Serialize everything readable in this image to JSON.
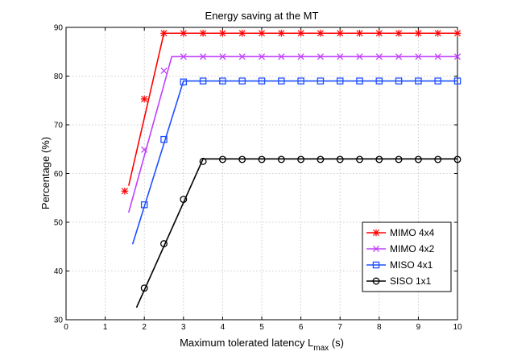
{
  "chart_data": {
    "type": "line",
    "title": "Energy saving at the MT",
    "xlabel": "Maximum tolerated latency L",
    "xlabel_sub": "max",
    "xlabel_unit": " (s)",
    "ylabel": "Percentage (%)",
    "xlim": [
      0,
      10
    ],
    "ylim": [
      30,
      90
    ],
    "xticks": [
      "0",
      "1",
      "2",
      "3",
      "4",
      "5",
      "6",
      "7",
      "8",
      "9",
      "10"
    ],
    "yticks": [
      "30",
      "40",
      "50",
      "60",
      "70",
      "80",
      "90"
    ],
    "grid": true,
    "legend_position": "bottom-right",
    "series": [
      {
        "name": "MIMO 4x4",
        "color": "#ff0000",
        "marker": "asterisk",
        "line": [
          [
            1.6,
            57.5
          ],
          [
            2.5,
            88.8
          ],
          [
            10,
            88.8
          ]
        ],
        "markers": [
          [
            1.5,
            56.4
          ],
          [
            2.0,
            75.3
          ],
          [
            2.5,
            88.8
          ],
          [
            3.0,
            88.8
          ],
          [
            3.5,
            88.8
          ],
          [
            4.0,
            88.8
          ],
          [
            4.5,
            88.8
          ],
          [
            5.0,
            88.8
          ],
          [
            5.5,
            88.8
          ],
          [
            6.0,
            88.8
          ],
          [
            6.5,
            88.8
          ],
          [
            7.0,
            88.8
          ],
          [
            7.5,
            88.8
          ],
          [
            8.0,
            88.8
          ],
          [
            8.5,
            88.8
          ],
          [
            9.0,
            88.8
          ],
          [
            9.5,
            88.8
          ],
          [
            10.0,
            88.8
          ]
        ]
      },
      {
        "name": "MIMO 4x2",
        "color": "#c040ff",
        "marker": "x",
        "line": [
          [
            1.6,
            52.0
          ],
          [
            2.7,
            84.0
          ],
          [
            10,
            84.0
          ]
        ],
        "markers": [
          [
            2.0,
            64.9
          ],
          [
            2.5,
            81.1
          ],
          [
            3.0,
            84.0
          ],
          [
            3.5,
            84.0
          ],
          [
            4.0,
            84.0
          ],
          [
            4.5,
            84.0
          ],
          [
            5.0,
            84.0
          ],
          [
            5.5,
            84.0
          ],
          [
            6.0,
            84.0
          ],
          [
            6.5,
            84.0
          ],
          [
            7.0,
            84.0
          ],
          [
            7.5,
            84.0
          ],
          [
            8.0,
            84.0
          ],
          [
            8.5,
            84.0
          ],
          [
            9.0,
            84.0
          ],
          [
            9.5,
            84.0
          ],
          [
            10.0,
            84.0
          ]
        ]
      },
      {
        "name": "MISO 4x1",
        "color": "#1f4fff",
        "marker": "square",
        "line": [
          [
            1.7,
            45.5
          ],
          [
            3.0,
            79.0
          ],
          [
            10,
            79.0
          ]
        ],
        "markers": [
          [
            2.0,
            53.6
          ],
          [
            2.5,
            67.0
          ],
          [
            3.0,
            78.8
          ],
          [
            3.5,
            79.0
          ],
          [
            4.0,
            79.0
          ],
          [
            4.5,
            79.0
          ],
          [
            5.0,
            79.0
          ],
          [
            5.5,
            79.0
          ],
          [
            6.0,
            79.0
          ],
          [
            6.5,
            79.0
          ],
          [
            7.0,
            79.0
          ],
          [
            7.5,
            79.0
          ],
          [
            8.0,
            79.0
          ],
          [
            8.5,
            79.0
          ],
          [
            9.0,
            79.0
          ],
          [
            9.5,
            79.0
          ],
          [
            10.0,
            79.0
          ]
        ]
      },
      {
        "name": "SISO 1x1",
        "color": "#000000",
        "marker": "circle",
        "line": [
          [
            1.8,
            32.5
          ],
          [
            3.5,
            63.0
          ],
          [
            10,
            63.0
          ]
        ],
        "markers": [
          [
            2.0,
            36.5
          ],
          [
            2.5,
            45.6
          ],
          [
            3.0,
            54.7
          ],
          [
            3.5,
            62.5
          ],
          [
            4.0,
            62.9
          ],
          [
            4.5,
            62.9
          ],
          [
            5.0,
            62.9
          ],
          [
            5.5,
            62.9
          ],
          [
            6.0,
            62.9
          ],
          [
            6.5,
            62.9
          ],
          [
            7.0,
            62.9
          ],
          [
            7.5,
            62.9
          ],
          [
            8.0,
            62.9
          ],
          [
            8.5,
            62.9
          ],
          [
            9.0,
            62.9
          ],
          [
            9.5,
            62.9
          ],
          [
            10.0,
            62.9
          ]
        ]
      }
    ]
  }
}
